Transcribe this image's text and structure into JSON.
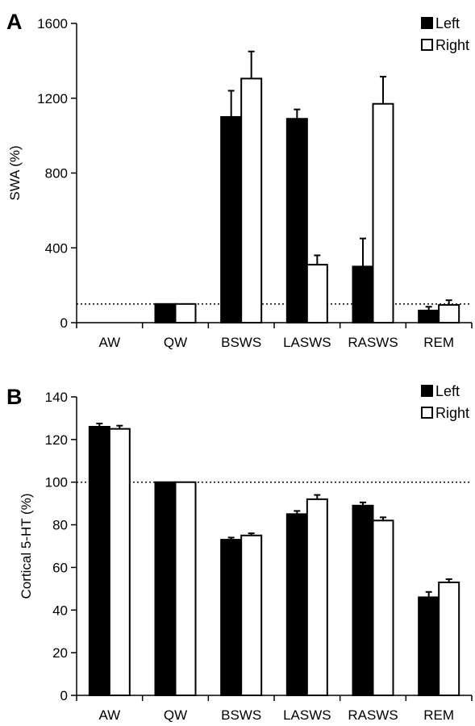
{
  "chart_data": [
    {
      "type": "bar",
      "panel": "A",
      "ylabel": "SWA (%)",
      "xlabel": "",
      "categories": [
        "AW",
        "QW",
        "BSWS",
        "LASWS",
        "RASWS",
        "REM"
      ],
      "yticks": [
        "0",
        "400",
        "800",
        "1200",
        "1600"
      ],
      "ylim": [
        0,
        1600
      ],
      "reference_line": 100,
      "grid": false,
      "legend_position": "top-right",
      "colors": {
        "Left": "#000000",
        "Right": "#ffffff"
      },
      "series": [
        {
          "name": "Left",
          "values": [
            null,
            100,
            1100,
            1090,
            300,
            65
          ],
          "errors": [
            null,
            0,
            140,
            50,
            150,
            20
          ]
        },
        {
          "name": "Right",
          "values": [
            null,
            100,
            1305,
            310,
            1170,
            95
          ],
          "errors": [
            null,
            0,
            145,
            50,
            145,
            25
          ]
        }
      ]
    },
    {
      "type": "bar",
      "panel": "B",
      "ylabel": "Cortical 5-HT (%)",
      "xlabel": "",
      "categories": [
        "AW",
        "QW",
        "BSWS",
        "LASWS",
        "RASWS",
        "REM"
      ],
      "yticks": [
        "0",
        "20",
        "40",
        "60",
        "80",
        "100",
        "120",
        "140"
      ],
      "ylim": [
        0,
        140
      ],
      "reference_line": 100,
      "grid": false,
      "legend_position": "top-right",
      "colors": {
        "Left": "#000000",
        "Right": "#ffffff"
      },
      "series": [
        {
          "name": "Left",
          "values": [
            126,
            100,
            73,
            85,
            89,
            46
          ],
          "errors": [
            1.5,
            0,
            1,
            1.5,
            1.5,
            2.5
          ]
        },
        {
          "name": "Right",
          "values": [
            125,
            100,
            75,
            92,
            82,
            53
          ],
          "errors": [
            1.5,
            0,
            1,
            2,
            1.5,
            1.5
          ]
        }
      ]
    }
  ]
}
